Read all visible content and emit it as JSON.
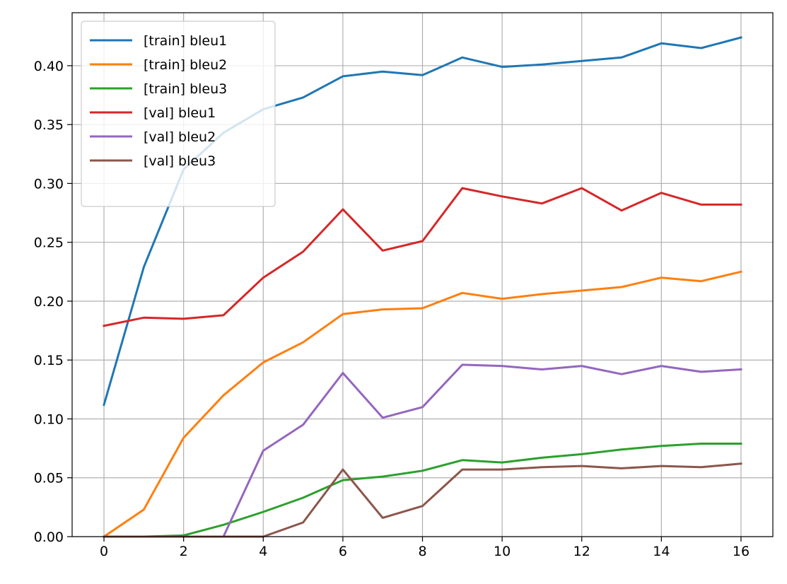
{
  "chart_data": {
    "type": "line",
    "title": "",
    "xlabel": "",
    "ylabel": "",
    "xlim": [
      -0.8,
      16.8
    ],
    "ylim": [
      0.0,
      0.445
    ],
    "grid": true,
    "legend_position": "upper-left",
    "x_ticks": [
      0,
      2,
      4,
      6,
      8,
      10,
      12,
      14,
      16
    ],
    "x_tick_labels": [
      "0",
      "2",
      "4",
      "6",
      "8",
      "10",
      "12",
      "14",
      "16"
    ],
    "y_ticks": [
      0.0,
      0.05,
      0.1,
      0.15,
      0.2,
      0.25,
      0.3,
      0.35,
      0.4
    ],
    "y_tick_labels": [
      "0.00",
      "0.05",
      "0.10",
      "0.15",
      "0.20",
      "0.25",
      "0.30",
      "0.35",
      "0.40"
    ],
    "x": [
      0,
      1,
      2,
      3,
      4,
      5,
      6,
      7,
      8,
      9,
      10,
      11,
      12,
      13,
      14,
      15,
      16
    ],
    "series": [
      {
        "name": "[train] bleu1",
        "color": "#1f77b4",
        "values": [
          0.112,
          0.229,
          0.312,
          0.343,
          0.363,
          0.373,
          0.391,
          0.395,
          0.392,
          0.407,
          0.399,
          0.401,
          0.404,
          0.407,
          0.419,
          0.415,
          0.424
        ]
      },
      {
        "name": "[train] bleu2",
        "color": "#ff7f0e",
        "values": [
          0.0,
          0.023,
          0.084,
          0.12,
          0.148,
          0.165,
          0.189,
          0.193,
          0.194,
          0.207,
          0.202,
          0.206,
          0.209,
          0.212,
          0.22,
          0.217,
          0.225
        ]
      },
      {
        "name": "[train] bleu3",
        "color": "#2ca02c",
        "values": [
          0.0,
          0.0,
          0.001,
          0.01,
          0.021,
          0.033,
          0.048,
          0.051,
          0.056,
          0.065,
          0.063,
          0.067,
          0.07,
          0.074,
          0.077,
          0.079,
          0.079
        ]
      },
      {
        "name": "[val] bleu1",
        "color": "#d62728",
        "values": [
          0.179,
          0.186,
          0.185,
          0.188,
          0.22,
          0.242,
          0.278,
          0.243,
          0.251,
          0.296,
          0.289,
          0.283,
          0.296,
          0.277,
          0.292,
          0.282,
          0.282
        ]
      },
      {
        "name": "[val] bleu2",
        "color": "#9467bd",
        "values": [
          0.0,
          0.0,
          0.0,
          0.0,
          0.073,
          0.095,
          0.139,
          0.101,
          0.11,
          0.146,
          0.145,
          0.142,
          0.145,
          0.138,
          0.145,
          0.14,
          0.142
        ]
      },
      {
        "name": "[val] bleu3",
        "color": "#8c564b",
        "values": [
          0.0,
          0.0,
          0.0,
          0.0,
          0.0,
          0.012,
          0.057,
          0.016,
          0.026,
          0.057,
          0.057,
          0.059,
          0.06,
          0.058,
          0.06,
          0.059,
          0.062
        ]
      }
    ]
  }
}
